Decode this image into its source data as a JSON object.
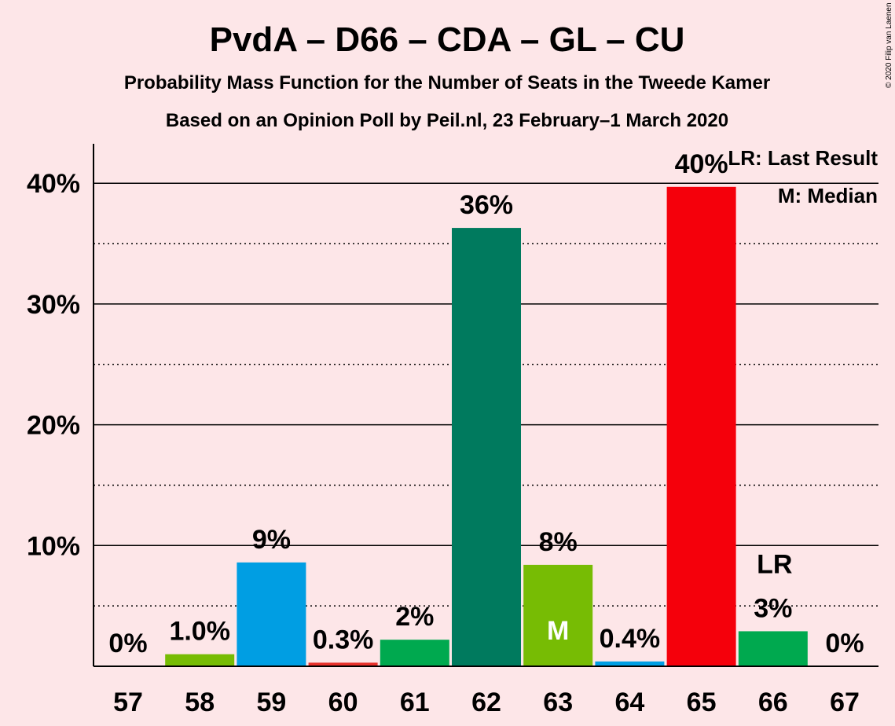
{
  "chart_data": {
    "type": "bar",
    "title": "PvdA – D66 – CDA – GL – CU",
    "subtitle": "Probability Mass Function for the Number of Seats in the Tweede Kamer",
    "subtitle2": "Based on an Opinion Poll by Peil.nl, 23 February–1 March 2020",
    "copyright": "© 2020 Filip van Laenen",
    "categories": [
      "57",
      "58",
      "59",
      "60",
      "61",
      "62",
      "63",
      "64",
      "65",
      "66",
      "67"
    ],
    "values": [
      0,
      1.0,
      8.6,
      0.3,
      2.2,
      36.3,
      8.4,
      0.4,
      39.7,
      2.9,
      0
    ],
    "value_labels": [
      "0%",
      "1.0%",
      "9%",
      "0.3%",
      "2%",
      "36%",
      "8%",
      "0.4%",
      "40%",
      "3%",
      "0%"
    ],
    "colors": [
      "#d0021b",
      "#77bc04",
      "#009ee3",
      "#e8312b",
      "#00a94f",
      "#007a5e",
      "#77bc04",
      "#009ee3",
      "#f5000b",
      "#00a94f",
      "#d0021b"
    ],
    "ylim": [
      0,
      43.5
    ],
    "yticks": [
      10,
      20,
      30,
      40
    ],
    "ytick_labels": [
      "10%",
      "20%",
      "30%",
      "40%"
    ],
    "minor_grid": [
      5,
      15,
      25,
      35
    ],
    "median_index": 6,
    "median_marker": "M",
    "last_result_index": 9,
    "last_result_marker": "LR",
    "legend": [
      "LR: Last Result",
      "M: Median"
    ],
    "legend_position": "top-right",
    "grid": true
  }
}
